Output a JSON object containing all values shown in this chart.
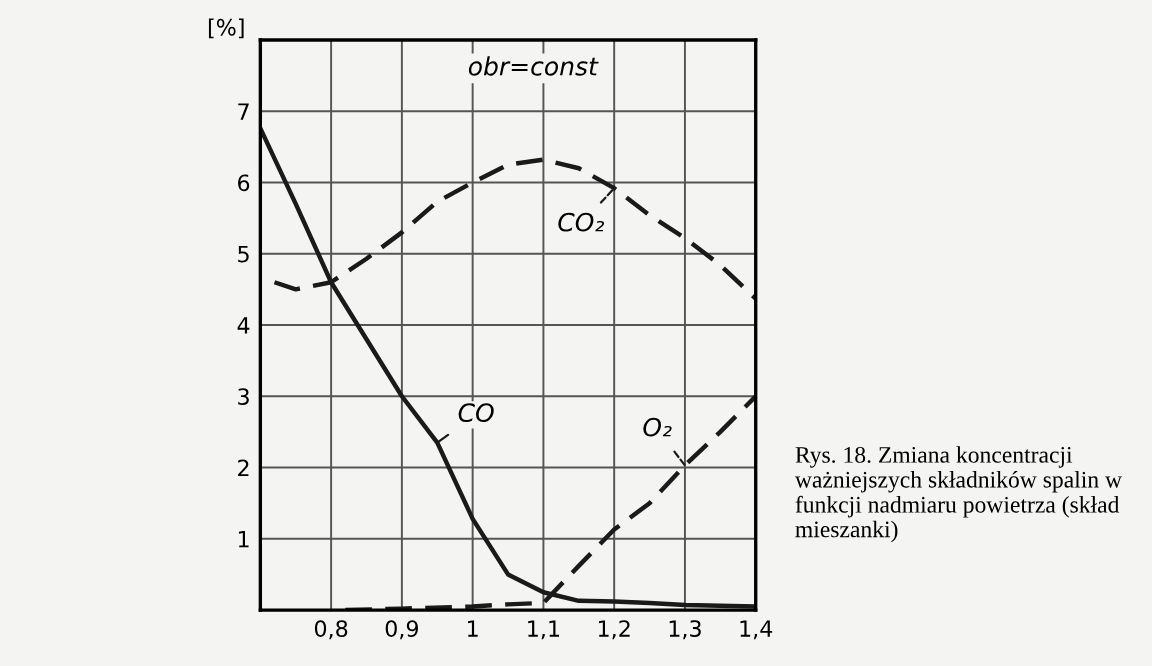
{
  "chart_data": {
    "type": "line",
    "ylabel": "[%]",
    "x": [
      0.7,
      0.75,
      0.8,
      0.85,
      0.9,
      0.95,
      1.0,
      1.05,
      1.1,
      1.15,
      1.2,
      1.25,
      1.3,
      1.35,
      1.4
    ],
    "series": [
      {
        "name": "CO",
        "color": "#1a1a1a",
        "line_style": "solid",
        "values": [
          6.76,
          5.7,
          4.6,
          3.8,
          3.0,
          2.35,
          1.28,
          0.5,
          0.25,
          0.13,
          0.12,
          0.1,
          0.07,
          0.06,
          0.05
        ]
      },
      {
        "name": "CO₂",
        "color": "#1a1a1a",
        "line_style": "dashed",
        "x": [
          0.72,
          0.75,
          0.8,
          0.85,
          0.9,
          0.95,
          1.0,
          1.05,
          1.1,
          1.15,
          1.2,
          1.25,
          1.3,
          1.35,
          1.4
        ],
        "values": [
          4.6,
          4.5,
          4.6,
          4.93,
          5.3,
          5.73,
          6.0,
          6.25,
          6.32,
          6.2,
          5.92,
          5.54,
          5.22,
          4.84,
          4.37
        ]
      },
      {
        "name": "O₂",
        "color": "#1a1a1a",
        "line_style": "dashed",
        "x": [
          0.82,
          0.9,
          1.0,
          1.05,
          1.1,
          1.15,
          1.2,
          1.25,
          1.3,
          1.35,
          1.4
        ],
        "values": [
          0.0,
          0.02,
          0.05,
          0.08,
          0.1,
          0.62,
          1.13,
          1.5,
          2.03,
          2.5,
          3.0
        ]
      }
    ],
    "xlim": [
      0.7,
      1.4
    ],
    "ylim": [
      0,
      8
    ],
    "xticks": [
      {
        "value": 0.8,
        "label": "0,8"
      },
      {
        "value": 0.9,
        "label": "0,9"
      },
      {
        "value": 1.0,
        "label": "1"
      },
      {
        "value": 1.1,
        "label": "1,1"
      },
      {
        "value": 1.2,
        "label": "1,2"
      },
      {
        "value": 1.3,
        "label": "1,3"
      },
      {
        "value": 1.4,
        "label": "1,4"
      }
    ],
    "yticks": [
      1,
      2,
      3,
      4,
      5,
      6,
      7
    ],
    "grid": true,
    "marker": "none",
    "annotations": [
      "obr=const",
      "Rys. 18. Zmiana koncentracji ważniejszych składników spalin w funkcji nadmiaru powietrza (skład mieszanki)"
    ]
  }
}
